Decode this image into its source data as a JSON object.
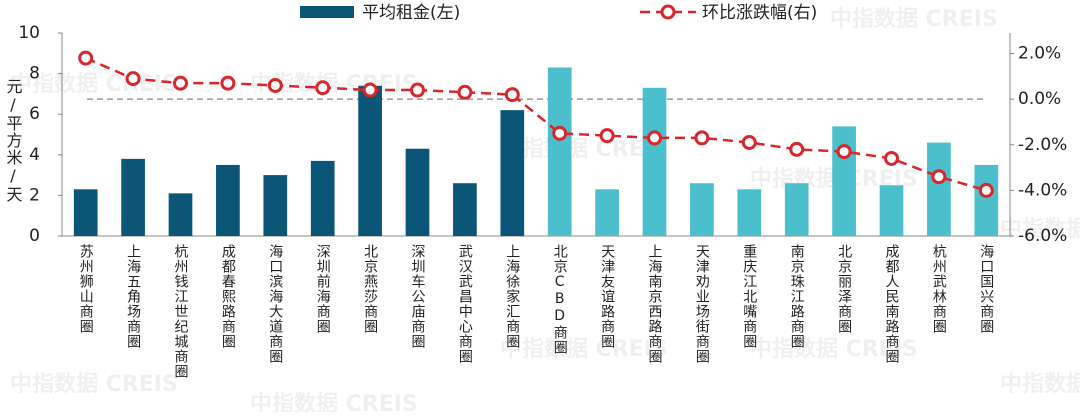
{
  "chart_data": {
    "type": "bar-line",
    "legend_position": "top",
    "watermark": "中指数据 CREIS",
    "ylabel": "元/平方米/天",
    "categories": [
      "苏州狮山商圈",
      "上海五角场商圈",
      "杭州钱江世纪城商圈",
      "成都春熙路商圈",
      "海口滨海大道商圈",
      "深圳前海商圈",
      "北京燕莎商圈",
      "深圳车公庙商圈",
      "武汉武昌中心商圈",
      "上海徐家汇商圈",
      "北京CBD商圈",
      "天津友谊路商圈",
      "上海南京西路商圈",
      "天津劝业场街商圈",
      "重庆江北嘴商圈",
      "南京珠江路商圈",
      "北京丽泽商圈",
      "成都人民南路商圈",
      "杭州武林商圈",
      "海口国兴商圈"
    ],
    "series": [
      {
        "name": "平均租金(左)",
        "type": "bar",
        "color": "#0b5677",
        "colors": [
          "#0b5677",
          "#0b5677",
          "#0b5677",
          "#0b5677",
          "#0b5677",
          "#0b5677",
          "#0b5677",
          "#0b5677",
          "#0b5677",
          "#0b5677",
          "#4bbfcc",
          "#4bbfcc",
          "#4bbfcc",
          "#4bbfcc",
          "#4bbfcc",
          "#4bbfcc",
          "#4bbfcc",
          "#4bbfcc",
          "#4bbfcc",
          "#4bbfcc"
        ],
        "values": [
          2.3,
          3.8,
          2.1,
          3.5,
          3.0,
          3.7,
          7.4,
          4.3,
          2.6,
          6.2,
          8.3,
          2.3,
          7.3,
          2.6,
          2.3,
          2.6,
          5.4,
          2.5,
          4.6,
          3.5
        ]
      },
      {
        "name": "环比涨跌幅(右)",
        "type": "line",
        "axis": "y2",
        "color": "#d9262b",
        "values": [
          1.8,
          0.9,
          0.7,
          0.7,
          0.6,
          0.5,
          0.4,
          0.4,
          0.3,
          0.2,
          -1.5,
          -1.6,
          -1.7,
          -1.7,
          -1.9,
          -2.2,
          -2.3,
          -2.6,
          -3.4,
          -4.0
        ]
      }
    ],
    "ylim": [
      0,
      10
    ],
    "yticks": [
      0,
      2,
      4,
      6,
      8,
      10
    ],
    "y2lim": [
      -6,
      2.9
    ],
    "y2ticks": [
      {
        "value": 2,
        "label": "2.0%"
      },
      {
        "value": 0,
        "label": "0.0%"
      },
      {
        "value": -2,
        "label": "-2.0%"
      },
      {
        "value": -4,
        "label": "-4.0%"
      },
      {
        "value": -6,
        "label": "-6.0%"
      }
    ],
    "y2_reference_line": 0
  }
}
